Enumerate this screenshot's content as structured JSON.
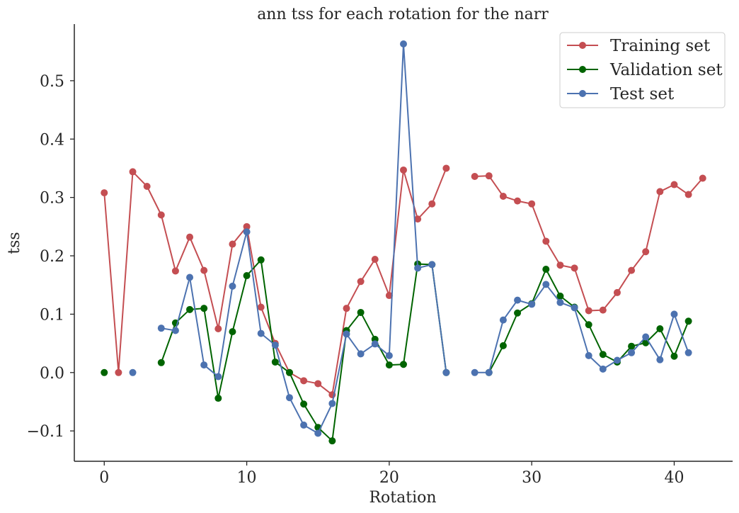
{
  "chart_data": {
    "type": "line",
    "title": "ann tss for each rotation for the narr",
    "xlabel": "Rotation",
    "ylabel": "tss",
    "xlim": [
      -2.1,
      44.1
    ],
    "ylim": [
      -0.152,
      0.597
    ],
    "xticks": [
      0,
      10,
      20,
      30,
      40
    ],
    "yticks": [
      -0.1,
      0.0,
      0.1,
      0.2,
      0.3,
      0.4,
      0.5
    ],
    "ytick_labels": [
      "−0.1",
      "0.0",
      "0.1",
      "0.2",
      "0.3",
      "0.4",
      "0.5"
    ],
    "grid": false,
    "legend_position": "top-right",
    "series": [
      {
        "name": "Training set",
        "color": "#c44e52",
        "points": [
          [
            [
              0,
              0.308
            ],
            [
              1,
              0.0
            ],
            [
              2,
              0.344
            ],
            [
              3,
              0.319
            ],
            [
              4,
              0.27
            ],
            [
              5,
              0.174
            ],
            [
              6,
              0.232
            ],
            [
              7,
              0.175
            ],
            [
              8,
              0.075
            ],
            [
              9,
              0.22
            ],
            [
              10,
              0.25
            ],
            [
              11,
              0.112
            ],
            [
              12,
              0.05
            ],
            [
              13,
              0.0
            ],
            [
              14,
              -0.014
            ],
            [
              15,
              -0.019
            ],
            [
              16,
              -0.038
            ],
            [
              17,
              0.11
            ],
            [
              18,
              0.156
            ],
            [
              19,
              0.194
            ],
            [
              20,
              0.132
            ],
            [
              21,
              0.347
            ],
            [
              22,
              0.263
            ],
            [
              23,
              0.289
            ],
            [
              24,
              0.35
            ]
          ],
          [
            [
              26,
              0.336
            ],
            [
              27,
              0.337
            ],
            [
              28,
              0.302
            ],
            [
              29,
              0.294
            ],
            [
              30,
              0.289
            ],
            [
              31,
              0.225
            ],
            [
              32,
              0.184
            ],
            [
              33,
              0.179
            ],
            [
              34,
              0.106
            ],
            [
              35,
              0.107
            ],
            [
              36,
              0.137
            ],
            [
              37,
              0.175
            ],
            [
              38,
              0.207
            ],
            [
              39,
              0.31
            ],
            [
              40,
              0.322
            ],
            [
              41,
              0.305
            ],
            [
              42,
              0.333
            ]
          ]
        ]
      },
      {
        "name": "Validation set",
        "color": "#006400",
        "points": [
          [
            [
              0,
              0.0
            ]
          ],
          [
            [
              4,
              0.017
            ],
            [
              5,
              0.085
            ],
            [
              6,
              0.108
            ],
            [
              7,
              0.11
            ],
            [
              8,
              -0.044
            ],
            [
              9,
              0.07
            ],
            [
              10,
              0.166
            ],
            [
              11,
              0.193
            ],
            [
              12,
              0.018
            ],
            [
              13,
              0.0
            ],
            [
              14,
              -0.054
            ],
            [
              15,
              -0.094
            ],
            [
              16,
              -0.117
            ],
            [
              17,
              0.072
            ],
            [
              18,
              0.103
            ],
            [
              19,
              0.057
            ],
            [
              20,
              0.013
            ],
            [
              21,
              0.014
            ],
            [
              22,
              0.186
            ],
            [
              23,
              0.185
            ],
            [
              24,
              0.0
            ]
          ],
          [
            [
              27,
              0.0
            ],
            [
              28,
              0.046
            ],
            [
              29,
              0.102
            ],
            [
              30,
              0.118
            ],
            [
              31,
              0.177
            ],
            [
              32,
              0.131
            ],
            [
              33,
              0.112
            ],
            [
              34,
              0.082
            ],
            [
              35,
              0.031
            ],
            [
              36,
              0.018
            ],
            [
              37,
              0.045
            ],
            [
              38,
              0.051
            ],
            [
              39,
              0.075
            ],
            [
              40,
              0.028
            ],
            [
              41,
              0.088
            ]
          ]
        ]
      },
      {
        "name": "Test set",
        "color": "#4c72b0",
        "points": [
          [
            [
              2,
              0.0
            ]
          ],
          [
            [
              4,
              0.076
            ],
            [
              5,
              0.072
            ],
            [
              6,
              0.163
            ],
            [
              7,
              0.013
            ],
            [
              8,
              -0.007
            ],
            [
              9,
              0.148
            ],
            [
              10,
              0.241
            ],
            [
              11,
              0.067
            ],
            [
              12,
              0.047
            ],
            [
              13,
              -0.043
            ],
            [
              14,
              -0.09
            ],
            [
              15,
              -0.104
            ],
            [
              16,
              -0.053
            ],
            [
              17,
              0.066
            ],
            [
              18,
              0.032
            ],
            [
              19,
              0.049
            ],
            [
              20,
              0.029
            ],
            [
              21,
              0.563
            ],
            [
              22,
              0.179
            ],
            [
              23,
              0.185
            ],
            [
              24,
              0.0
            ]
          ],
          [
            [
              26,
              0.0
            ],
            [
              27,
              0.0
            ],
            [
              28,
              0.09
            ],
            [
              29,
              0.124
            ],
            [
              30,
              0.117
            ],
            [
              31,
              0.151
            ],
            [
              32,
              0.12
            ],
            [
              33,
              0.111
            ],
            [
              34,
              0.029
            ],
            [
              35,
              0.006
            ],
            [
              36,
              0.021
            ],
            [
              37,
              0.034
            ],
            [
              38,
              0.061
            ],
            [
              39,
              0.022
            ],
            [
              40,
              0.1
            ],
            [
              41,
              0.034
            ]
          ]
        ]
      }
    ]
  }
}
